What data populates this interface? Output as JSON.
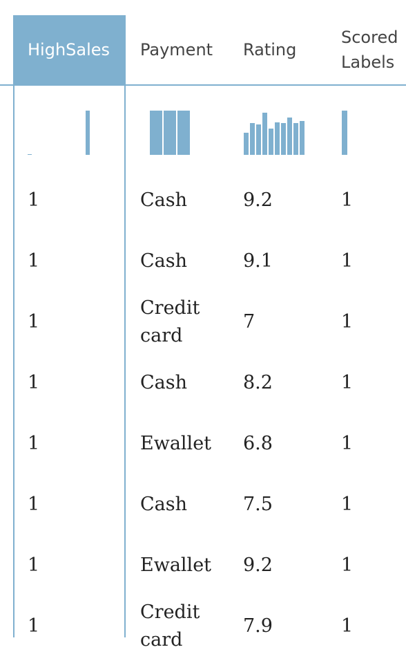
{
  "table": {
    "columns": [
      {
        "id": "highsales",
        "label": "HighSales",
        "selected": true
      },
      {
        "id": "payment",
        "label": "Payment",
        "selected": false
      },
      {
        "id": "rating",
        "label": "Rating",
        "selected": false
      },
      {
        "id": "scored",
        "label": "Scored\nLabels",
        "selected": false
      }
    ],
    "rows": [
      {
        "highsales": "1",
        "payment": "Cash",
        "rating": "9.2",
        "scored": "1"
      },
      {
        "highsales": "1",
        "payment": "Cash",
        "rating": "9.1",
        "scored": "1"
      },
      {
        "highsales": "1",
        "payment": "Credit\ncard",
        "rating": "7",
        "scored": "1"
      },
      {
        "highsales": "1",
        "payment": "Cash",
        "rating": "8.2",
        "scored": "1"
      },
      {
        "highsales": "1",
        "payment": "Ewallet",
        "rating": "6.8",
        "scored": "1"
      },
      {
        "highsales": "1",
        "payment": "Cash",
        "rating": "7.5",
        "scored": "1"
      },
      {
        "highsales": "1",
        "payment": "Ewallet",
        "rating": "9.2",
        "scored": "1"
      },
      {
        "highsales": "1",
        "payment": "Credit\ncard",
        "rating": "7.9",
        "scored": "1"
      }
    ],
    "histograms": {
      "highsales": [
        0.02,
        0,
        0,
        0,
        0,
        0,
        0,
        0,
        0,
        0,
        0,
        0,
        0,
        0,
        1
      ],
      "payment": [
        1,
        1,
        1
      ],
      "rating": [
        0.5,
        0.72,
        0.68,
        0.95,
        0.6,
        0.74,
        0.72,
        0.85,
        0.72,
        0.76
      ],
      "scored": [
        1
      ]
    },
    "colors": {
      "accent": "#7fb0cf",
      "header_selected_text": "#ffffff",
      "header_text": "#444444"
    }
  }
}
